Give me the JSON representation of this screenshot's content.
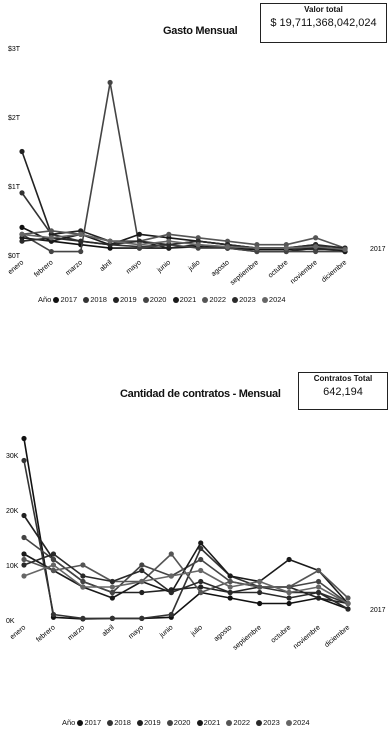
{
  "chart_data": [
    {
      "type": "line",
      "title": "Gasto Mensual",
      "kpi": {
        "label": "Valor total",
        "value": "$ 19,711,368,042,024"
      },
      "y_ticks": [
        "$0T",
        "$1T",
        "$2T",
        "$3T"
      ],
      "ylim": [
        0,
        3
      ],
      "categories": [
        "enero",
        "febrero",
        "marzo",
        "abril",
        "mayo",
        "junio",
        "julio",
        "agosto",
        "septiembre",
        "octubre",
        "noviembre",
        "diciembre"
      ],
      "end_label": "2017",
      "legend_title": "Año",
      "legend": [
        "2017",
        "2018",
        "2019",
        "2020",
        "2021",
        "2022",
        "2023",
        "2024"
      ],
      "series": [
        {
          "name": "2017",
          "values": [
            0.4,
            0.2,
            0.15,
            0.1,
            0.1,
            0.1,
            0.12,
            0.1,
            0.08,
            0.08,
            0.1,
            0.1
          ]
        },
        {
          "name": "2018",
          "values": [
            0.9,
            0.3,
            0.2,
            0.15,
            0.12,
            0.15,
            0.2,
            0.15,
            0.1,
            0.1,
            0.08,
            0.08
          ]
        },
        {
          "name": "2019",
          "values": [
            1.5,
            0.3,
            0.35,
            0.2,
            0.2,
            0.1,
            0.15,
            0.1,
            0.05,
            0.05,
            0.1,
            0.05
          ]
        },
        {
          "name": "2020",
          "values": [
            0.3,
            0.05,
            0.05,
            2.5,
            0.1,
            0.15,
            0.1,
            0.1,
            0.05,
            0.05,
            0.05,
            0.05
          ]
        },
        {
          "name": "2021",
          "values": [
            0.25,
            0.2,
            0.3,
            0.15,
            0.3,
            0.25,
            0.2,
            0.15,
            0.1,
            0.1,
            0.15,
            0.05
          ]
        },
        {
          "name": "2022",
          "values": [
            0.3,
            0.35,
            0.3,
            0.2,
            0.2,
            0.3,
            0.25,
            0.2,
            0.15,
            0.15,
            0.25,
            0.1
          ]
        },
        {
          "name": "2023",
          "values": [
            0.2,
            0.25,
            0.2,
            0.15,
            0.2,
            0.15,
            0.2,
            0.15,
            0.1,
            0.1,
            0.15,
            0.1
          ]
        },
        {
          "name": "2024",
          "values": [
            0.3,
            0.25,
            0.3,
            0.2,
            0.15,
            0.2,
            0.15,
            0.12,
            0.1,
            0.1,
            0.12,
            0.08
          ]
        }
      ],
      "grid": false,
      "legend_position": "bottom"
    },
    {
      "type": "line",
      "title": "Cantidad de contratos - Mensual",
      "kpi": {
        "label": "Contratos Total",
        "value": "642,194"
      },
      "y_ticks": [
        "0K",
        "10K",
        "20K",
        "30K"
      ],
      "ylim": [
        0,
        30
      ],
      "categories": [
        "enero",
        "febrero",
        "marzo",
        "abril",
        "mayo",
        "junio",
        "julio",
        "agosto",
        "septiembre",
        "octubre",
        "noviembre",
        "diciembre"
      ],
      "end_label": "2017",
      "legend_title": "Año",
      "legend": [
        "2017",
        "2018",
        "2019",
        "2020",
        "2021",
        "2022",
        "2023",
        "2024"
      ],
      "series": [
        {
          "name": "2017",
          "values": [
            33,
            0.5,
            0.2,
            0.3,
            0.3,
            0.5,
            5,
            4,
            3,
            3,
            4,
            2
          ]
        },
        {
          "name": "2018",
          "values": [
            29,
            1,
            0.3,
            0.3,
            0.3,
            1,
            13,
            8,
            6,
            5,
            5,
            3
          ]
        },
        {
          "name": "2019",
          "values": [
            19,
            11,
            7,
            5,
            5,
            5.5,
            6,
            5,
            6,
            6,
            4,
            3
          ]
        },
        {
          "name": "2020",
          "values": [
            15,
            11,
            7,
            5,
            10,
            8,
            11,
            7,
            6,
            6,
            7,
            3
          ]
        },
        {
          "name": "2021",
          "values": [
            12,
            9,
            6,
            4,
            7,
            5,
            14,
            8,
            7,
            11,
            9,
            3
          ]
        },
        {
          "name": "2022",
          "values": [
            11,
            9,
            10,
            7,
            7,
            12,
            5,
            7,
            6,
            6,
            9,
            4
          ]
        },
        {
          "name": "2023",
          "values": [
            10,
            12,
            8,
            7,
            9,
            5,
            7,
            5,
            5,
            4,
            5,
            2
          ]
        },
        {
          "name": "2024",
          "values": [
            8,
            10,
            6,
            6,
            7,
            8,
            9,
            6,
            7,
            5,
            6,
            3
          ]
        }
      ],
      "grid": false,
      "legend_position": "bottom"
    }
  ]
}
